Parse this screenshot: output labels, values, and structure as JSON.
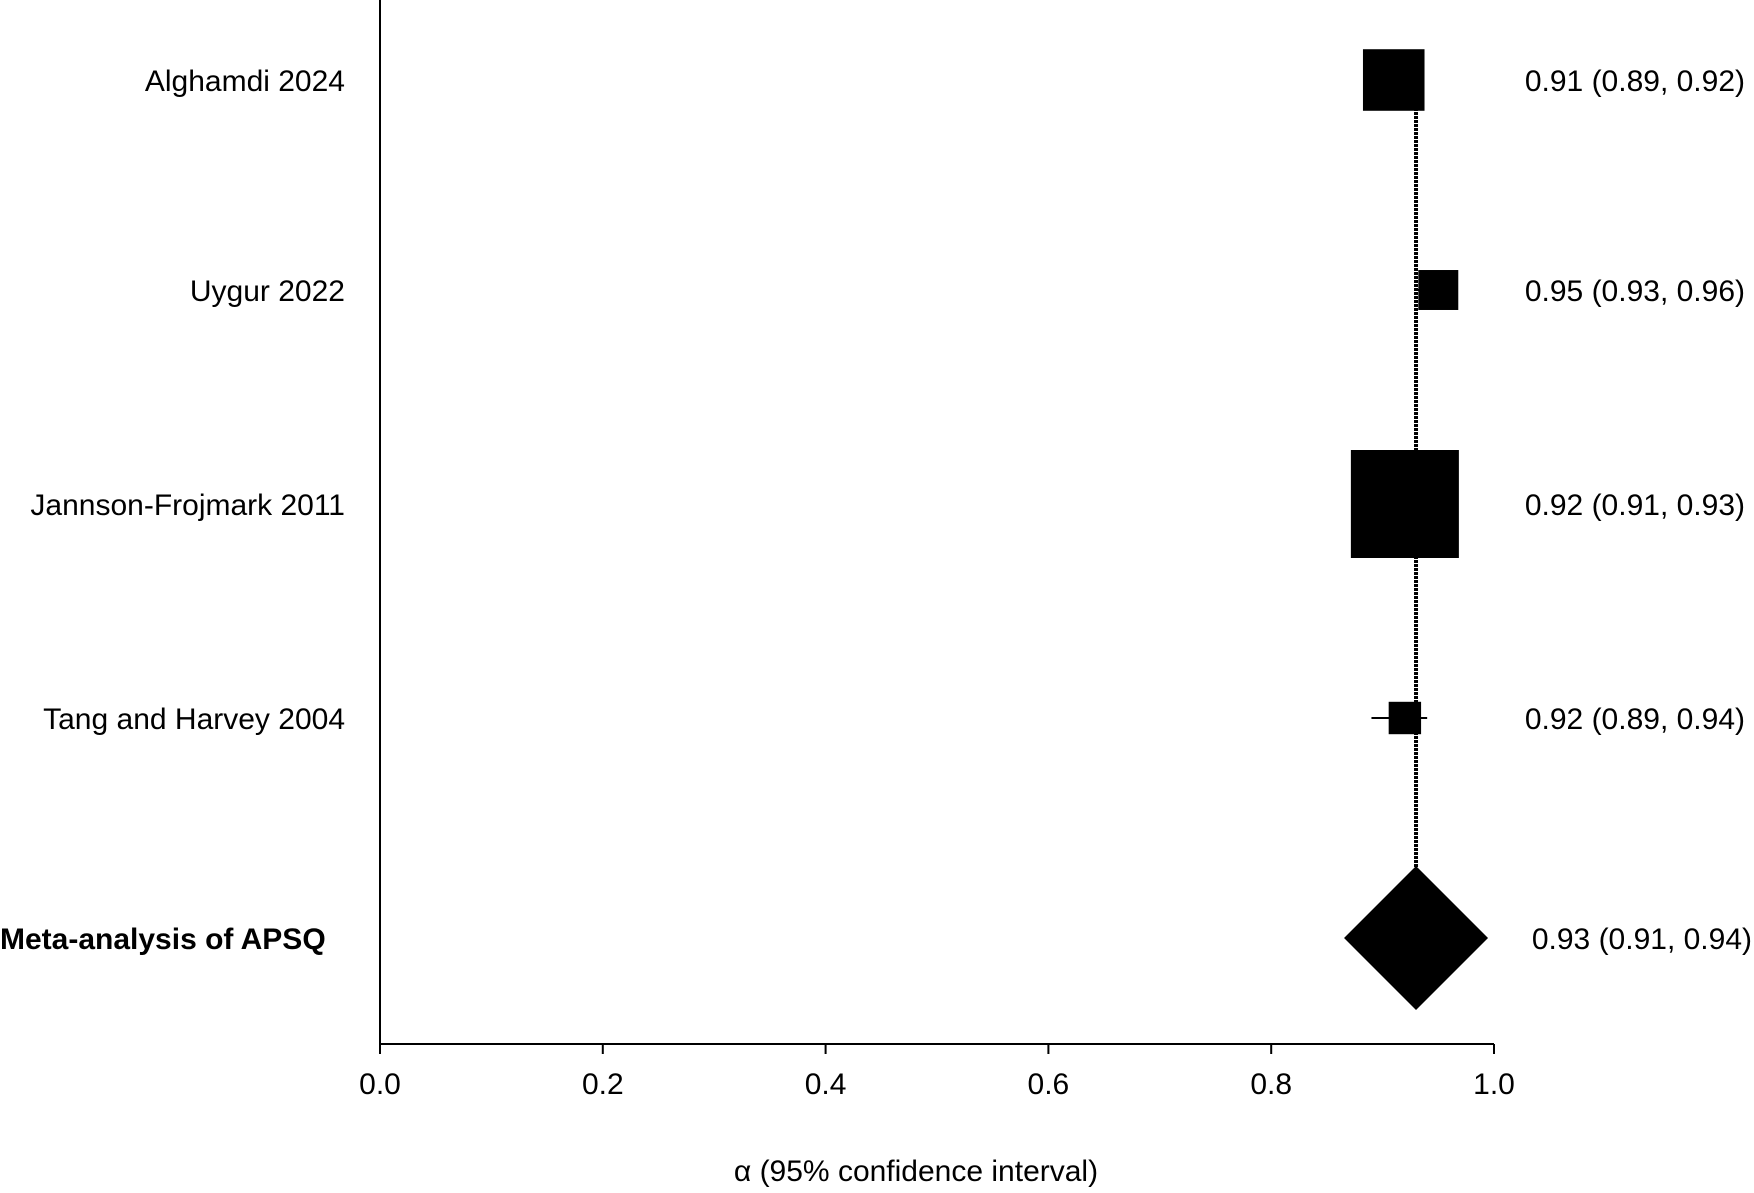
{
  "chart_data": {
    "type": "forest",
    "xlabel": "α (95% confidence interval)",
    "xlim": [
      0.0,
      1.0
    ],
    "xticks": [
      "0.0",
      "0.2",
      "0.4",
      "0.6",
      "0.8",
      "1.0"
    ],
    "tick_values": [
      0.0,
      0.2,
      0.4,
      0.6,
      0.8,
      1.0
    ],
    "reference_line": 0.93,
    "grid": false,
    "studies": [
      {
        "label": "Alghamdi 2024",
        "estimate": 0.91,
        "lower": 0.89,
        "upper": 0.92,
        "weight": 0.57,
        "text": "0.91 (0.89, 0.92)"
      },
      {
        "label": "Uygur 2022",
        "estimate": 0.95,
        "lower": 0.93,
        "upper": 0.96,
        "weight": 0.37,
        "text": "0.95 (0.93, 0.96)"
      },
      {
        "label": "Jannson-Frojmark 2011",
        "estimate": 0.92,
        "lower": 0.91,
        "upper": 0.93,
        "weight": 1.0,
        "text": "0.92 (0.91, 0.93)"
      },
      {
        "label": "Tang and Harvey 2004",
        "estimate": 0.92,
        "lower": 0.89,
        "upper": 0.94,
        "weight": 0.3,
        "text": "0.92 (0.89, 0.94)"
      }
    ],
    "pooled": {
      "label": "Meta-analysis of APSQ",
      "estimate": 0.93,
      "lower": 0.91,
      "upper": 0.94,
      "text": "0.93 (0.91, 0.94)"
    }
  }
}
